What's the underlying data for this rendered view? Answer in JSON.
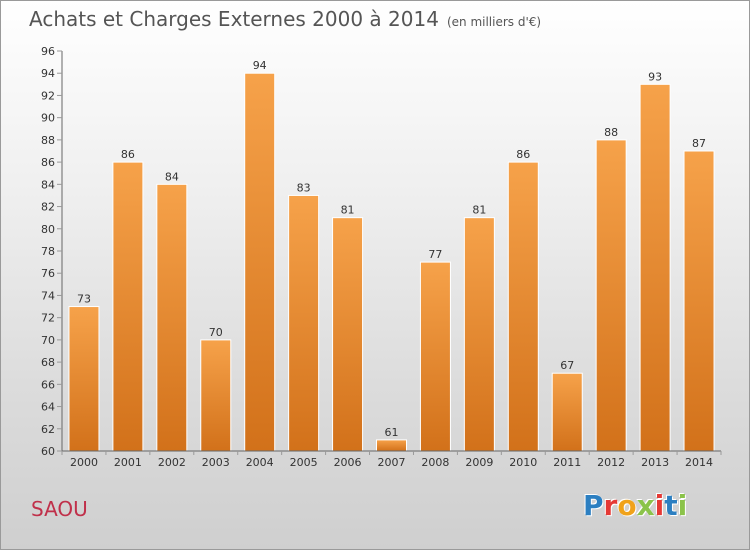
{
  "header": {
    "title": "Achats et Charges Externes 2000 à 2014",
    "subtitle": "(en milliers d'€)"
  },
  "footer": {
    "commune": "SAOU",
    "logo": {
      "text": "Proxiti",
      "letter_colors": [
        "#2c7fc1",
        "#e53935",
        "#f0a21a",
        "#8bc34a",
        "#e53935",
        "#2c7fc1",
        "#8bc34a"
      ]
    }
  },
  "colors": {
    "bar_light": "#f6a24a",
    "bar_dark": "#d2711a",
    "axis": "#666666",
    "grid_tick": "#999999",
    "text": "#333333"
  },
  "chart_data": {
    "type": "bar",
    "categories": [
      "2000",
      "2001",
      "2002",
      "2003",
      "2004",
      "2005",
      "2006",
      "2007",
      "2008",
      "2009",
      "2010",
      "2011",
      "2012",
      "2013",
      "2014"
    ],
    "values": [
      73,
      86,
      84,
      70,
      94,
      83,
      81,
      61,
      77,
      81,
      86,
      67,
      88,
      93,
      87
    ],
    "title": "Achats et Charges Externes 2000 à 2014",
    "subtitle": "(en milliers d'€)",
    "xlabel": "",
    "ylabel": "",
    "ylim": [
      60,
      96
    ],
    "yticks": [
      60,
      62,
      64,
      66,
      68,
      70,
      72,
      74,
      76,
      78,
      80,
      82,
      84,
      86,
      88,
      90,
      92,
      94,
      96
    ],
    "data_labels": true,
    "grid": false,
    "legend": "none"
  }
}
